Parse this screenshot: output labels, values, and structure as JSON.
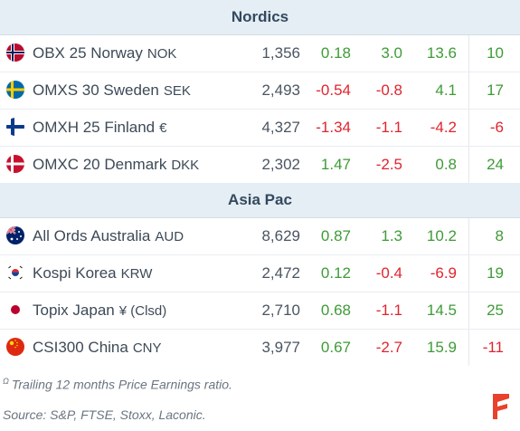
{
  "sections": [
    {
      "title": "Nordics",
      "rows": [
        {
          "name": "OBX 25 Norway",
          "currency": "NOK",
          "flag": "norway-flag-icon",
          "price": "1,356",
          "d1": "0.18",
          "d2": "3.0",
          "d3": "13.6",
          "pe": "10"
        },
        {
          "name": "OMXS 30 Sweden",
          "currency": "SEK",
          "flag": "sweden-flag-icon",
          "price": "2,493",
          "d1": "-0.54",
          "d2": "-0.8",
          "d3": "4.1",
          "pe": "17"
        },
        {
          "name": "OMXH 25 Finland",
          "currency": "€",
          "flag": "finland-flag-icon",
          "price": "4,327",
          "d1": "-1.34",
          "d2": "-1.1",
          "d3": "-4.2",
          "pe": "-6"
        },
        {
          "name": "OMXC 20 Denmark",
          "currency": "DKK",
          "flag": "denmark-flag-icon",
          "price": "2,302",
          "d1": "1.47",
          "d2": "-2.5",
          "d3": "0.8",
          "pe": "24"
        }
      ]
    },
    {
      "title": "Asia Pac",
      "rows": [
        {
          "name": "All Ords Australia",
          "currency": "AUD",
          "flag": "australia-flag-icon",
          "price": "8,629",
          "d1": "0.87",
          "d2": "1.3",
          "d3": "10.2",
          "pe": "8"
        },
        {
          "name": "Kospi Korea",
          "currency": "KRW",
          "flag": "south-korea-flag-icon",
          "price": "2,472",
          "d1": "0.12",
          "d2": "-0.4",
          "d3": "-6.9",
          "pe": "19"
        },
        {
          "name": "Topix Japan",
          "currency": "¥ (Clsd)",
          "flag": "japan-flag-icon",
          "price": "2,710",
          "d1": "0.68",
          "d2": "-1.1",
          "d3": "14.5",
          "pe": "25"
        },
        {
          "name": "CSI300 China",
          "currency": "CNY",
          "flag": "china-flag-icon",
          "price": "3,977",
          "d1": "0.67",
          "d2": "-2.7",
          "d3": "15.9",
          "pe": "-11"
        }
      ]
    }
  ],
  "footer": {
    "note_marker": "Ω",
    "note": "Trailing 12 months Price Earnings ratio.",
    "source": "Source: S&P, FTSE, Stoxx, Laconic.",
    "logo": "brand-logo-icon"
  },
  "colors": {
    "positive": "#3e9b37",
    "negative": "#e0242f",
    "header_bg": "#e4eef4",
    "logo": "#e8412c"
  }
}
